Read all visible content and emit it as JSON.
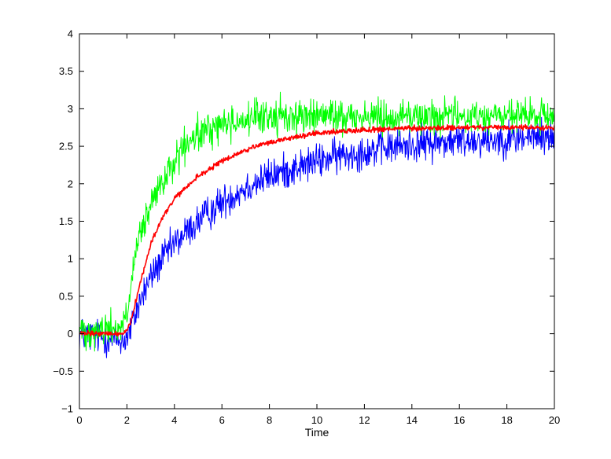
{
  "chart_data": {
    "type": "line",
    "title": "",
    "xlabel": "Time",
    "ylabel": "",
    "xlim": [
      0,
      20
    ],
    "ylim": [
      -1,
      4
    ],
    "x_ticks": [
      0,
      2,
      4,
      6,
      8,
      10,
      12,
      14,
      16,
      18,
      20
    ],
    "y_ticks": [
      -1,
      -0.5,
      0,
      0.5,
      1,
      1.5,
      2,
      2.5,
      3,
      3.5,
      4
    ],
    "x_tick_labels": [
      "0",
      "2",
      "4",
      "6",
      "8",
      "10",
      "12",
      "14",
      "16",
      "18",
      "20"
    ],
    "y_tick_labels": [
      "−1",
      "−0.5",
      "0",
      "0.5",
      "1",
      "1.5",
      "2",
      "2.5",
      "3",
      "3.5",
      "4"
    ],
    "grid": false,
    "legend": "none",
    "x": [
      0,
      1,
      1.8,
      2,
      2.2,
      2.5,
      3,
      3.5,
      4,
      4.5,
      5,
      6,
      7,
      8,
      9,
      10,
      11,
      12,
      13,
      14,
      15,
      16,
      17,
      18,
      19,
      20
    ],
    "series": [
      {
        "color": "#0000ff",
        "values": [
          0,
          -0.05,
          -0.1,
          -0.05,
          0.1,
          0.4,
          0.75,
          1.0,
          1.2,
          1.35,
          1.5,
          1.75,
          1.95,
          2.1,
          2.2,
          2.3,
          2.38,
          2.43,
          2.48,
          2.52,
          2.55,
          2.57,
          2.59,
          2.6,
          2.62,
          2.63
        ],
        "noise_amplitude": 0.2
      },
      {
        "color": "#00ff00",
        "values": [
          0.05,
          0.05,
          0.1,
          0.25,
          0.7,
          1.25,
          1.7,
          2.0,
          2.3,
          2.5,
          2.65,
          2.8,
          2.85,
          2.9,
          2.9,
          2.9,
          2.9,
          2.9,
          2.9,
          2.9,
          2.9,
          2.9,
          2.9,
          2.9,
          2.9,
          2.9
        ],
        "noise_amplitude": 0.2
      },
      {
        "color": "#ff0000",
        "values": [
          0,
          0,
          0,
          0.05,
          0.2,
          0.6,
          1.2,
          1.55,
          1.8,
          1.95,
          2.1,
          2.3,
          2.45,
          2.55,
          2.62,
          2.67,
          2.7,
          2.72,
          2.73,
          2.74,
          2.74,
          2.75,
          2.75,
          2.75,
          2.75,
          2.75
        ],
        "noise_amplitude": 0.03
      }
    ]
  }
}
